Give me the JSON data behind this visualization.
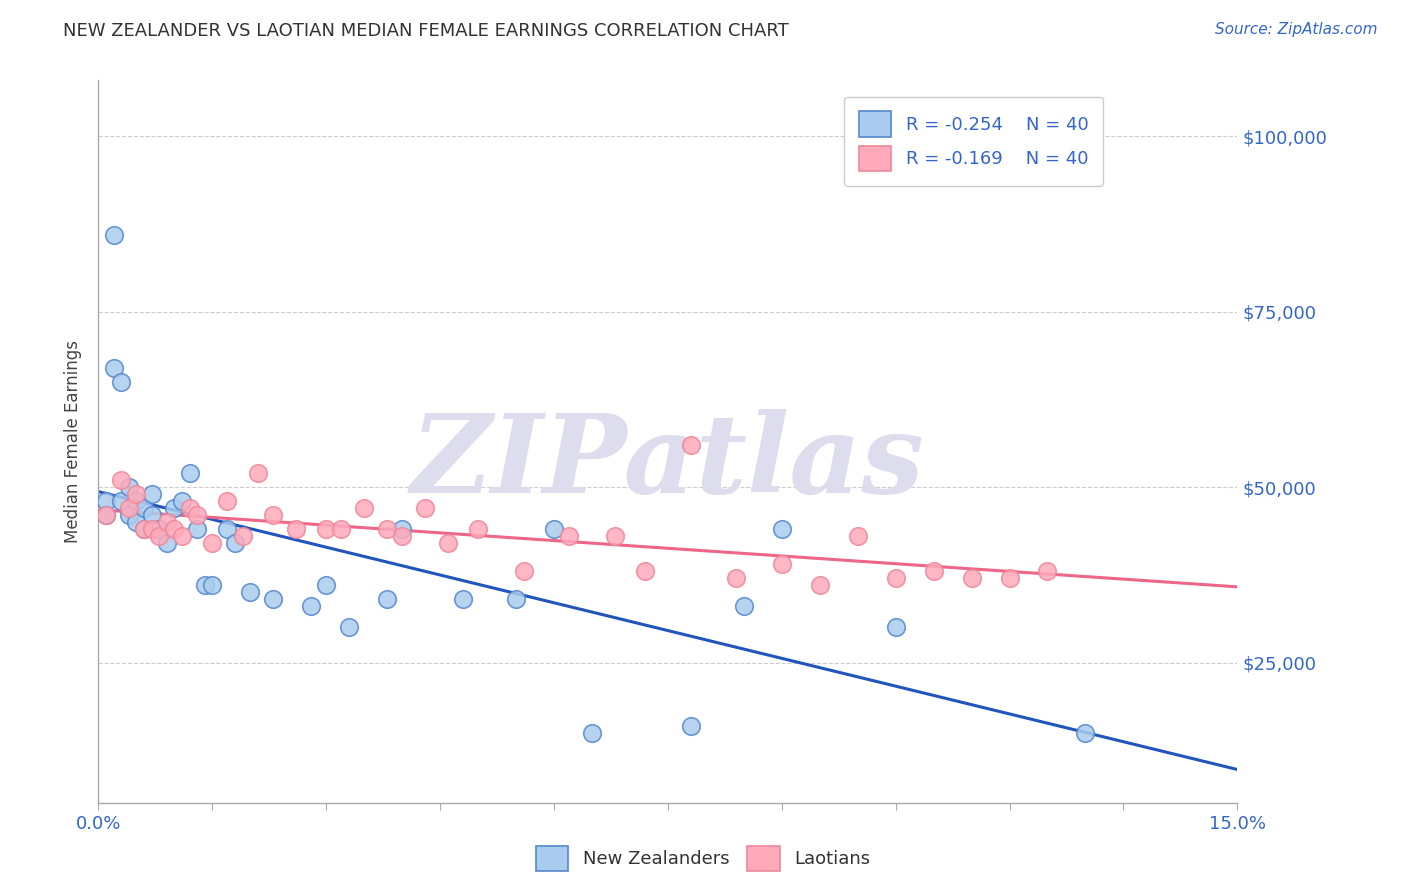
{
  "title": "NEW ZEALANDER VS LAOTIAN MEDIAN FEMALE EARNINGS CORRELATION CHART",
  "source": "Source: ZipAtlas.com",
  "ylabel": "Median Female Earnings",
  "xlim": [
    0.0,
    0.15
  ],
  "ylim": [
    5000,
    108000
  ],
  "xticks": [
    0.0,
    0.015,
    0.03,
    0.045,
    0.06,
    0.075,
    0.09,
    0.105,
    0.12,
    0.135,
    0.15
  ],
  "xticklabels": [
    "0.0%",
    "",
    "",
    "",
    "",
    "",
    "",
    "",
    "",
    "",
    "15.0%"
  ],
  "ytick_positions": [
    25000,
    50000,
    75000,
    100000
  ],
  "ytick_labels": [
    "$25,000",
    "$50,000",
    "$75,000",
    "$100,000"
  ],
  "legend_r1": "-0.254",
  "legend_n1": "40",
  "legend_r2": "-0.169",
  "legend_n2": "40",
  "color_nz_face": "#AACCEE",
  "color_nz_edge": "#5588CC",
  "color_la_face": "#FFAABB",
  "color_la_edge": "#EE8899",
  "color_blue_text": "#3366CC",
  "color_trendline_nz": "#2255BB",
  "color_trendline_la": "#EE6688",
  "background_color": "#FFFFFF",
  "watermark_text": "ZIPatlas",
  "nz_x": [
    0.001,
    0.001,
    0.002,
    0.002,
    0.003,
    0.003,
    0.004,
    0.004,
    0.005,
    0.005,
    0.006,
    0.006,
    0.007,
    0.007,
    0.008,
    0.009,
    0.01,
    0.011,
    0.012,
    0.013,
    0.014,
    0.015,
    0.017,
    0.018,
    0.02,
    0.023,
    0.028,
    0.03,
    0.033,
    0.038,
    0.04,
    0.048,
    0.055,
    0.06,
    0.065,
    0.078,
    0.085,
    0.09,
    0.105,
    0.13
  ],
  "nz_y": [
    48000,
    46000,
    86000,
    67000,
    65000,
    48000,
    50000,
    46000,
    48000,
    45000,
    47000,
    44000,
    49000,
    46000,
    44000,
    42000,
    47000,
    48000,
    52000,
    44000,
    36000,
    36000,
    44000,
    42000,
    35000,
    34000,
    33000,
    36000,
    30000,
    34000,
    44000,
    34000,
    34000,
    44000,
    15000,
    16000,
    33000,
    44000,
    30000,
    15000
  ],
  "laotian_x": [
    0.001,
    0.003,
    0.004,
    0.005,
    0.006,
    0.007,
    0.008,
    0.009,
    0.01,
    0.011,
    0.012,
    0.013,
    0.015,
    0.017,
    0.019,
    0.021,
    0.023,
    0.026,
    0.03,
    0.032,
    0.035,
    0.038,
    0.04,
    0.043,
    0.046,
    0.05,
    0.056,
    0.062,
    0.068,
    0.072,
    0.078,
    0.084,
    0.09,
    0.095,
    0.1,
    0.105,
    0.11,
    0.115,
    0.12,
    0.125
  ],
  "laotian_y": [
    46000,
    51000,
    47000,
    49000,
    44000,
    44000,
    43000,
    45000,
    44000,
    43000,
    47000,
    46000,
    42000,
    48000,
    43000,
    52000,
    46000,
    44000,
    44000,
    44000,
    47000,
    44000,
    43000,
    47000,
    42000,
    44000,
    38000,
    43000,
    43000,
    38000,
    56000,
    37000,
    39000,
    36000,
    43000,
    37000,
    38000,
    37000,
    37000,
    38000
  ]
}
